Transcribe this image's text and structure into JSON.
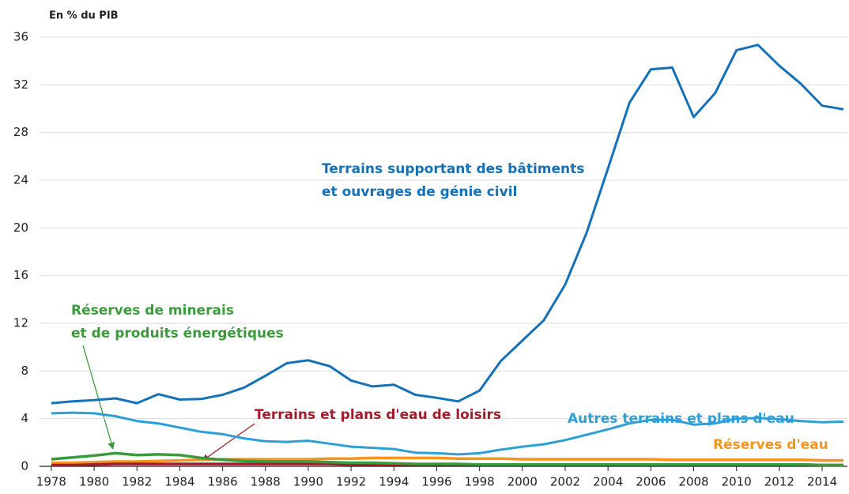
{
  "chart_data": {
    "type": "line",
    "y_axis_label": "En % du PIB",
    "x": [
      1978,
      1979,
      1980,
      1981,
      1982,
      1983,
      1984,
      1985,
      1986,
      1987,
      1988,
      1989,
      1990,
      1991,
      1992,
      1993,
      1994,
      1995,
      1996,
      1997,
      1998,
      1999,
      2000,
      2001,
      2002,
      2003,
      2004,
      2005,
      2006,
      2007,
      2008,
      2009,
      2010,
      2011,
      2012,
      2013,
      2014,
      2015
    ],
    "series": [
      {
        "color": "#1471b8",
        "values": [
          5.3,
          5.45,
          5.55,
          5.7,
          5.3,
          6.05,
          5.6,
          5.65,
          6.0,
          6.6,
          7.6,
          8.65,
          8.9,
          8.4,
          7.2,
          6.7,
          6.85,
          6.0,
          5.75,
          5.45,
          6.35,
          8.85,
          10.55,
          12.25,
          15.25,
          19.6,
          25.0,
          30.5,
          33.3,
          33.45,
          29.3,
          31.3,
          34.9,
          35.35,
          33.6,
          32.1,
          30.25,
          29.95
        ]
      },
      {
        "color": "#2c9fd9",
        "values": [
          4.45,
          4.5,
          4.45,
          4.2,
          3.8,
          3.6,
          3.25,
          2.9,
          2.7,
          2.35,
          2.1,
          2.05,
          2.15,
          1.9,
          1.65,
          1.55,
          1.45,
          1.15,
          1.1,
          1.0,
          1.1,
          1.4,
          1.65,
          1.85,
          2.2,
          2.65,
          3.1,
          3.6,
          3.9,
          3.9,
          3.5,
          3.6,
          4.0,
          4.05,
          3.95,
          3.8,
          3.7,
          3.75
        ]
      },
      {
        "color": "#f7941d",
        "values": [
          0.3,
          0.3,
          0.35,
          0.4,
          0.4,
          0.45,
          0.5,
          0.55,
          0.6,
          0.6,
          0.6,
          0.6,
          0.6,
          0.65,
          0.65,
          0.7,
          0.7,
          0.7,
          0.7,
          0.65,
          0.65,
          0.65,
          0.6,
          0.6,
          0.6,
          0.6,
          0.6,
          0.6,
          0.6,
          0.55,
          0.55,
          0.55,
          0.55,
          0.55,
          0.55,
          0.55,
          0.5,
          0.5
        ]
      },
      {
        "color": "#3a9a3c",
        "values": [
          0.6,
          0.75,
          0.9,
          1.1,
          0.95,
          1.0,
          0.95,
          0.7,
          0.55,
          0.45,
          0.4,
          0.4,
          0.4,
          0.35,
          0.3,
          0.3,
          0.25,
          0.2,
          0.2,
          0.2,
          0.15,
          0.15,
          0.15,
          0.15,
          0.15,
          0.15,
          0.15,
          0.15,
          0.15,
          0.15,
          0.15,
          0.15,
          0.15,
          0.15,
          0.15,
          0.15,
          0.1,
          0.1
        ]
      },
      {
        "color": "#a11d2b",
        "values": [
          0.1,
          0.1,
          0.15,
          0.2,
          0.2,
          0.2,
          0.2,
          0.2,
          0.2,
          0.2,
          0.2,
          0.2,
          0.2,
          0.2,
          0.15,
          0.15,
          0.15,
          0.15,
          0.15,
          0.15,
          0.15,
          0.15,
          0.15,
          0.15,
          0.15,
          0.15,
          0.15,
          0.15,
          0.15,
          0.15,
          0.15,
          0.15,
          0.15,
          0.15,
          0.15,
          0.15,
          0.1,
          0.1
        ]
      }
    ],
    "annotations": [
      {
        "lines": [
          "Terrains supportant des bâtiments",
          "et ouvrages de génie civil"
        ]
      },
      {
        "lines": [
          "Autres terrains et plans d'eau"
        ]
      },
      {
        "lines": [
          "Réserves d'eau"
        ]
      },
      {
        "lines": [
          "Réserves de minerais",
          "et de produits énergétiques"
        ]
      },
      {
        "lines": [
          "Terrains et plans d'eau de loisirs"
        ]
      }
    ],
    "xlim": [
      1977.45,
      2015.18
    ],
    "xticks": [
      1978,
      1980,
      1982,
      1984,
      1986,
      1988,
      1990,
      1992,
      1994,
      1996,
      1998,
      2000,
      2002,
      2004,
      2006,
      2008,
      2010,
      2012,
      2014
    ],
    "ylim": [
      0,
      36
    ],
    "yticks": [
      0,
      4,
      8,
      12,
      16,
      20,
      24,
      28,
      32,
      36
    ],
    "grid": true
  }
}
